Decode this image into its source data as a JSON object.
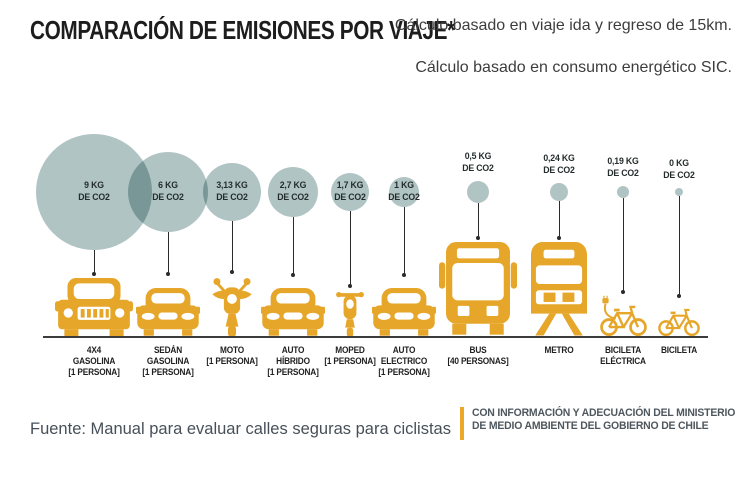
{
  "title": "COMPARACIÓN DE EMISIONES POR VIAJE*",
  "notes": [
    [
      "Cálculo basado en viaje ida",
      "y regreso de 15km."
    ],
    [
      "Cálculo basado en",
      "consumo energético SIC."
    ]
  ],
  "source": "Fuente: Manual para evaluar calles seguras para ciclistas",
  "attribution": {
    "line1": "CON INFORMACIÓN Y ADECUACIÓN DEL MINISTERIO",
    "line2": "DE MEDIO AMBIENTE DEL GOBIERNO DE CHILE"
  },
  "colors": {
    "bubble": "#b0c4c4",
    "bubble_overlap": "#8ba4a4",
    "vehicle": "#e6a62a",
    "accent_bar": "#eca928",
    "title_text": "#1d1d1d",
    "note_text": "#3d3d3d",
    "source_text": "#475059",
    "attribution_text": "#4e575e",
    "ground_line": "#3c3c3c",
    "stem": "#2b2b2b",
    "bubble_text": "#252c2c",
    "label_text": "#1f1f1f"
  },
  "chart_data": {
    "type": "scatter",
    "subtype": "proportional-area bubble comparison",
    "title": "Comparación de emisiones por viaje",
    "unit": "kg CO2 por viaje (ida y regreso de 15 km)",
    "legend": "none",
    "categories": [
      "4X4 Gasolina (1 persona)",
      "Sedán Gasolina (1 persona)",
      "Moto (1 persona)",
      "Auto Híbrido (1 persona)",
      "Moped (1 persona)",
      "Auto Electrico (1 persona)",
      "Bus (40 personas)",
      "Metro",
      "Bicileta Eléctrica",
      "Bicileta"
    ],
    "values": [
      9,
      6,
      3.13,
      2.7,
      1.7,
      1,
      0.5,
      0.24,
      0.19,
      0
    ]
  },
  "columns": [
    {
      "value_lines": [
        "9 KG",
        "DE CO2"
      ],
      "value_position": "inside",
      "name_lines": [
        "4X4",
        "GASOLINA",
        "[1 PERSONA]"
      ],
      "icon": "suv-icon",
      "radius": 58
    },
    {
      "value_lines": [
        "6 KG",
        "DE CO2"
      ],
      "value_position": "inside",
      "name_lines": [
        "SEDÁN",
        "GASOLINA",
        "[1 PERSONA]"
      ],
      "icon": "sedan-icon",
      "radius": 40
    },
    {
      "value_lines": [
        "3,13 KG",
        "DE CO2"
      ],
      "value_position": "inside",
      "name_lines": [
        "MOTO",
        "[1 PERSONA]"
      ],
      "icon": "motorcycle-icon",
      "radius": 29
    },
    {
      "value_lines": [
        "2,7 KG",
        "DE CO2"
      ],
      "value_position": "inside",
      "name_lines": [
        "AUTO",
        "HÍBRIDO",
        "[1 PERSONA]"
      ],
      "icon": "hybrid-car-icon",
      "radius": 25
    },
    {
      "value_lines": [
        "1,7 KG",
        "DE CO2"
      ],
      "value_position": "inside",
      "name_lines": [
        "MOPED",
        "[1 PERSONA]"
      ],
      "icon": "moped-icon",
      "radius": 19
    },
    {
      "value_lines": [
        "1 KG",
        "DE CO2"
      ],
      "value_position": "inside",
      "name_lines": [
        "AUTO",
        "ELECTRICO",
        "[1 PERSONA]"
      ],
      "icon": "electric-car-icon",
      "radius": 15
    },
    {
      "value_lines": [
        "0,5 KG",
        "DE CO2"
      ],
      "value_position": "above",
      "name_lines": [
        "BUS",
        "[40 PERSONAS]"
      ],
      "icon": "bus-icon",
      "radius": 11
    },
    {
      "value_lines": [
        "0,24 KG",
        "DE CO2"
      ],
      "value_position": "above",
      "name_lines": [
        "METRO"
      ],
      "icon": "metro-icon",
      "radius": 9
    },
    {
      "value_lines": [
        "0,19 KG",
        "DE CO2"
      ],
      "value_position": "above",
      "name_lines": [
        "BICILETA",
        "ELÉCTRICA"
      ],
      "icon": "electric-bike-icon",
      "radius": 6
    },
    {
      "value_lines": [
        "0 KG",
        "DE CO2"
      ],
      "value_position": "above",
      "name_lines": [
        "BICILETA"
      ],
      "icon": "bike-icon",
      "radius": 4
    }
  ]
}
